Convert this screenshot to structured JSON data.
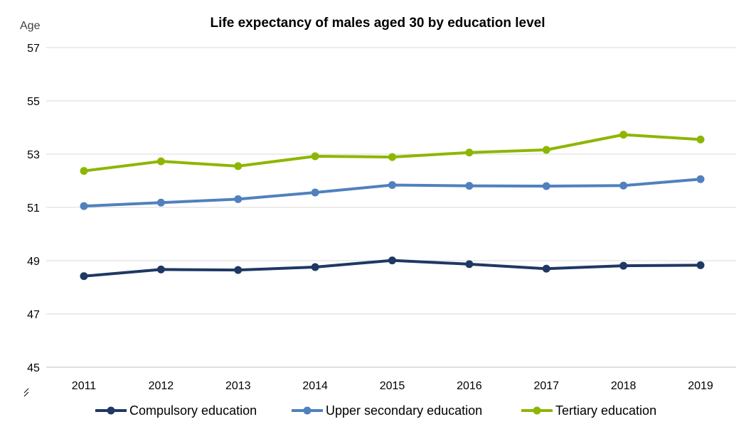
{
  "chart_data": {
    "type": "line",
    "title": "Life expectancy of males aged 30 by education level",
    "ylabel": "Age",
    "xlabel": "",
    "x": [
      "2011",
      "2012",
      "2013",
      "2014",
      "2015",
      "2016",
      "2017",
      "2018",
      "2019"
    ],
    "ylim": [
      45,
      57
    ],
    "yticks": [
      "45",
      "47",
      "49",
      "51",
      "53",
      "55",
      "57"
    ],
    "grid": true,
    "legend_position": "bottom",
    "series": [
      {
        "name": "Compulsory education",
        "color": "#1f3864",
        "values": [
          48.42,
          48.67,
          48.65,
          48.76,
          49.01,
          48.87,
          48.7,
          48.81,
          48.83
        ]
      },
      {
        "name": "Upper secondary education",
        "color": "#4f81bd",
        "values": [
          51.05,
          51.18,
          51.31,
          51.56,
          51.84,
          51.81,
          51.8,
          51.82,
          52.06
        ]
      },
      {
        "name": "Tertiary education",
        "color": "#8db600",
        "values": [
          52.37,
          52.73,
          52.55,
          52.92,
          52.89,
          53.06,
          53.16,
          53.73,
          53.55
        ]
      }
    ]
  }
}
